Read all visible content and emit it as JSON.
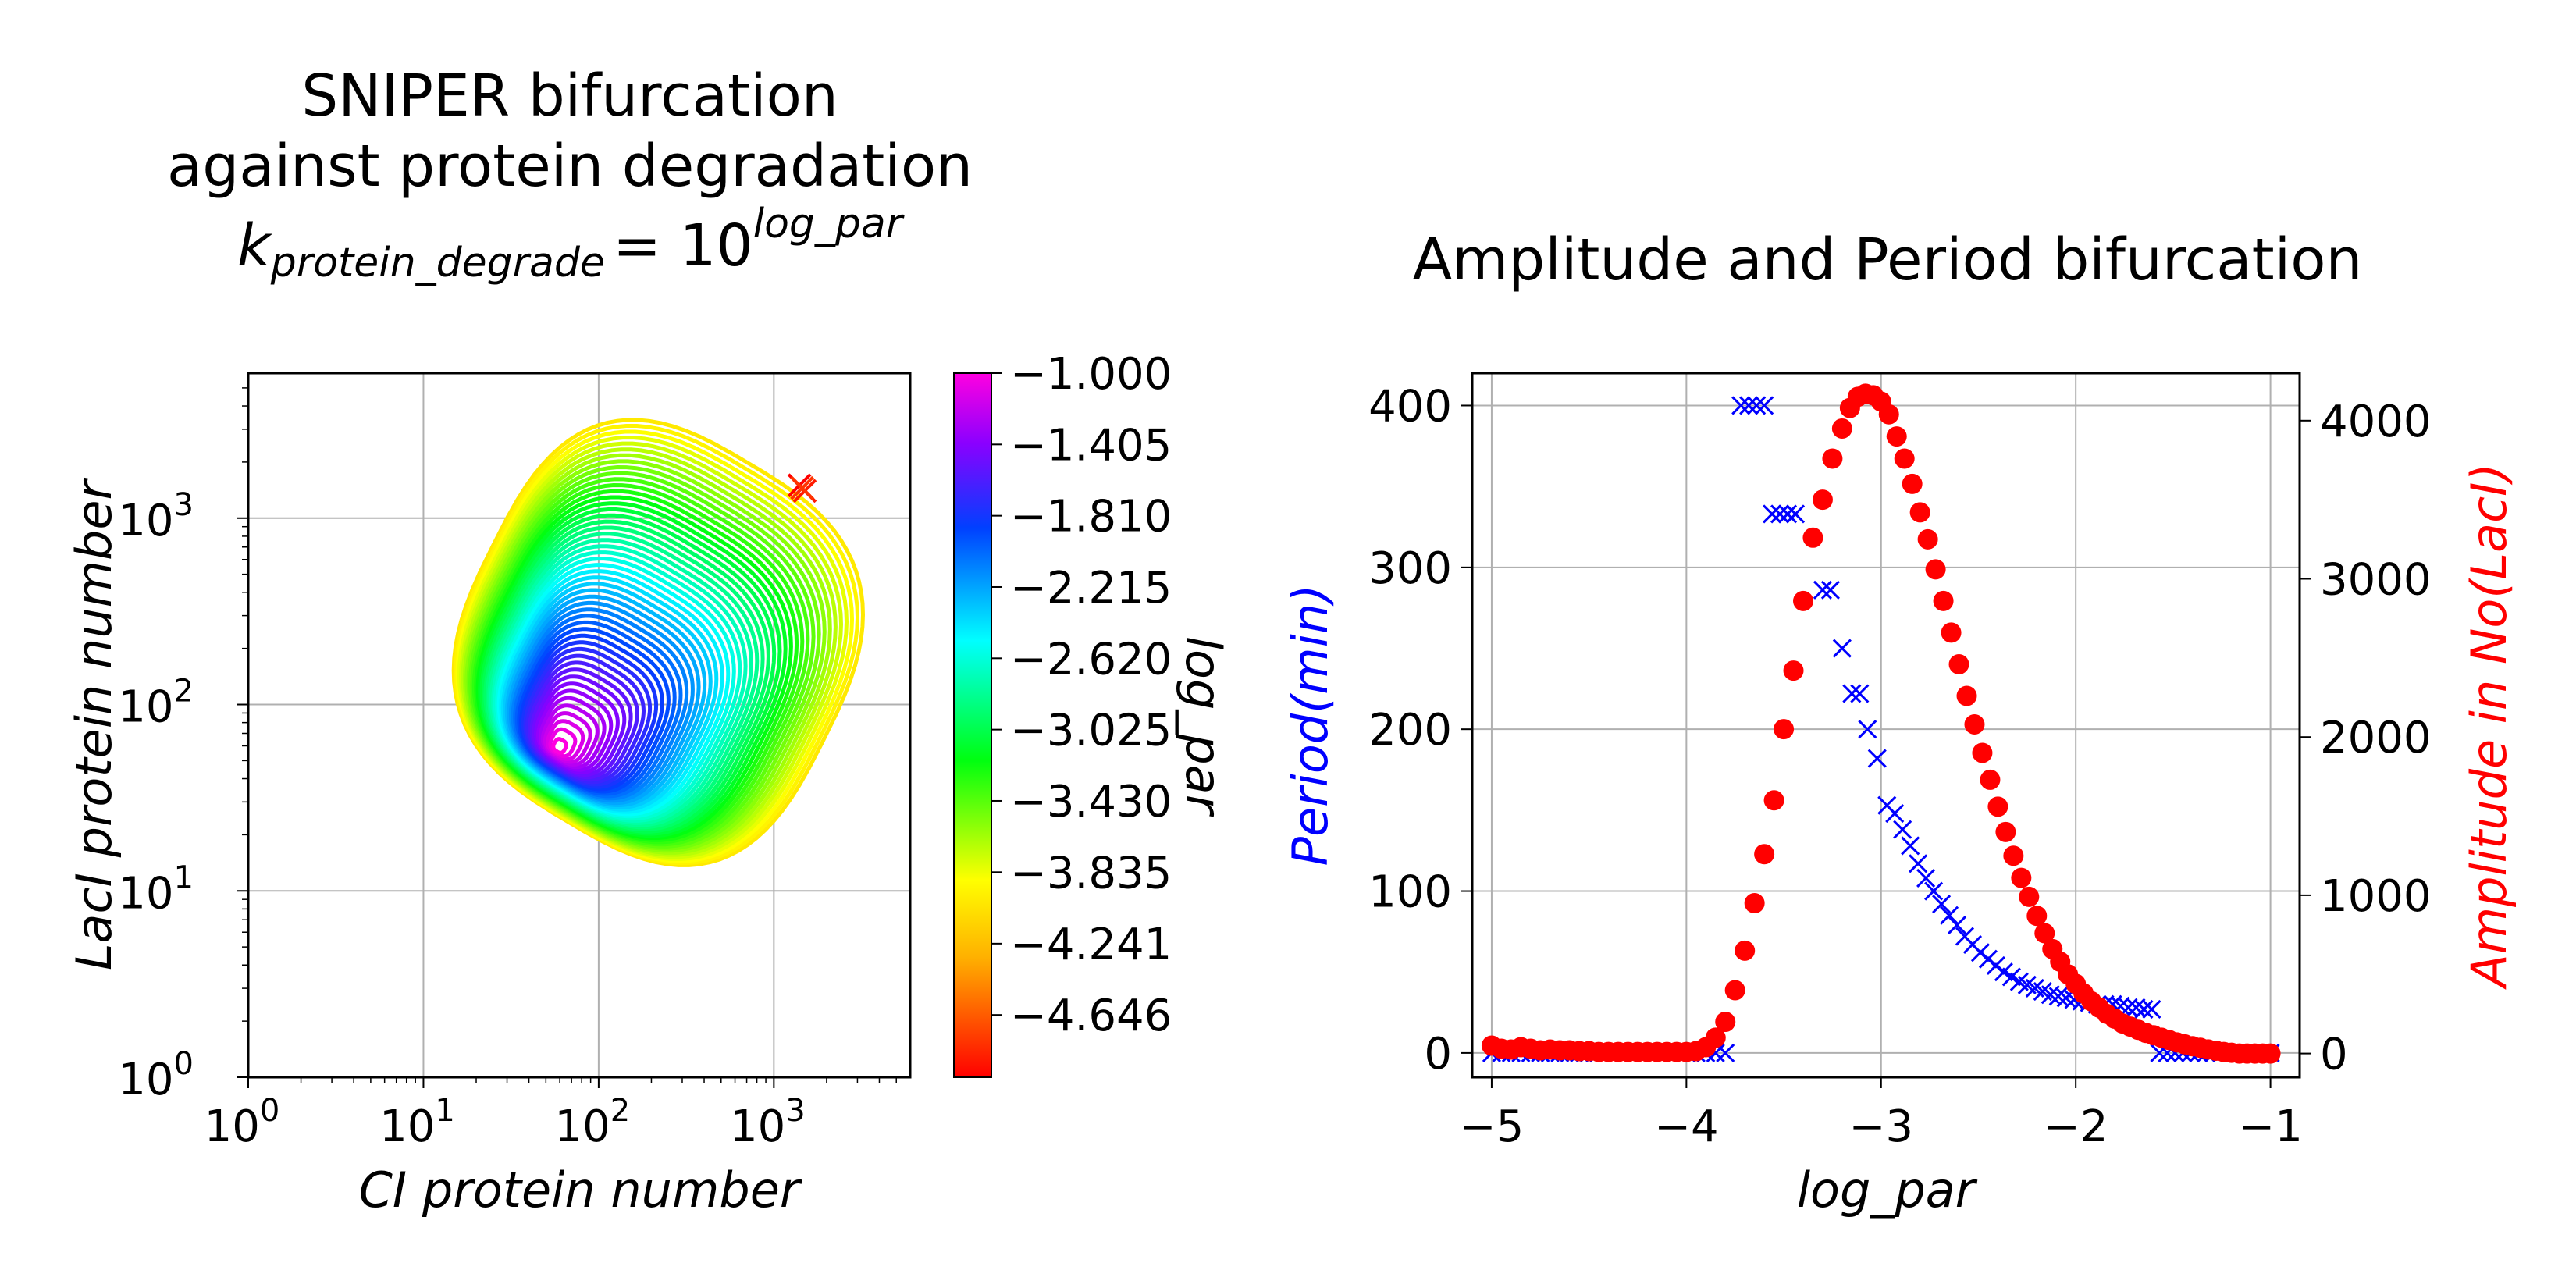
{
  "chart_data": [
    {
      "type": "line",
      "title_lines": [
        "SNIPER bifurcation",
        "against protein degradation"
      ],
      "title_formula": {
        "base": "k",
        "subscript": "protein_degrade",
        "equals": "= 10",
        "exponent": "log_par"
      },
      "xlabel": "CI protein number",
      "ylabel": "LacI protein number",
      "xscale": "log",
      "yscale": "log",
      "xlim": [
        1,
        6000
      ],
      "ylim": [
        1,
        6000
      ],
      "x_ticks": [
        {
          "base": "10",
          "exp": "0"
        },
        {
          "base": "10",
          "exp": "1"
        },
        {
          "base": "10",
          "exp": "2"
        },
        {
          "base": "10",
          "exp": "3"
        }
      ],
      "y_ticks": [
        {
          "base": "10",
          "exp": "0"
        },
        {
          "base": "10",
          "exp": "1"
        },
        {
          "base": "10",
          "exp": "2"
        },
        {
          "base": "10",
          "exp": "3"
        }
      ],
      "grid": true,
      "colormap": "gist_rainbow",
      "colorbar": {
        "label": "log_par",
        "range": [
          -5.0,
          -1.0
        ],
        "ticks": [
          "−1.000",
          "−1.405",
          "−1.810",
          "−2.215",
          "−2.620",
          "−3.025",
          "−3.430",
          "−3.835",
          "−4.241",
          "−4.646"
        ]
      },
      "limit_cycles": {
        "count": 50,
        "log_par_range": [
          -4.0,
          -1.0
        ],
        "largest_cycle_x_range": [
          12,
          4000
        ],
        "largest_cycle_y_range": [
          11,
          4200
        ],
        "innermost_cycle_center": [
          60,
          60
        ]
      },
      "stable_points": [
        {
          "x": 1400,
          "y": 1500,
          "log_par": -5.0
        },
        {
          "x": 1500,
          "y": 1400,
          "log_par": -4.9
        },
        {
          "x": 1450,
          "y": 1450,
          "log_par": -4.8
        }
      ]
    },
    {
      "type": "scatter",
      "title": "Amplitude and Period bifurcation",
      "xlabel": "log_par",
      "ylabel_left": "Period(min)",
      "ylabel_right": "Amplitude in No(LacI)",
      "xlim": [
        -5.1,
        -0.85
      ],
      "ylim_left": [
        -15,
        420
      ],
      "ylim_right": [
        -150,
        4300
      ],
      "x_ticks": [
        "−5",
        "−4",
        "−3",
        "−2",
        "−1"
      ],
      "y_ticks_left": [
        "0",
        "100",
        "200",
        "300",
        "400"
      ],
      "y_ticks_right": [
        "0",
        "1000",
        "2000",
        "3000",
        "4000"
      ],
      "grid": true,
      "colors": {
        "period": "#0000ff",
        "amplitude": "#ff0000"
      },
      "series": [
        {
          "name": "Period(min)",
          "axis": "left",
          "marker": "x",
          "color": "#0000ff",
          "points": [
            [
              -5.0,
              0
            ],
            [
              -4.95,
              0
            ],
            [
              -4.9,
              0
            ],
            [
              -4.85,
              0
            ],
            [
              -4.8,
              0
            ],
            [
              -4.75,
              0
            ],
            [
              -4.7,
              0
            ],
            [
              -4.65,
              0
            ],
            [
              -4.6,
              0
            ],
            [
              -4.55,
              0
            ],
            [
              -4.5,
              0
            ],
            [
              -4.45,
              0
            ],
            [
              -4.4,
              0
            ],
            [
              -4.35,
              0
            ],
            [
              -4.3,
              0
            ],
            [
              -4.25,
              0
            ],
            [
              -4.2,
              0
            ],
            [
              -4.15,
              0
            ],
            [
              -4.1,
              0
            ],
            [
              -4.05,
              0
            ],
            [
              -4.0,
              0
            ],
            [
              -3.95,
              0
            ],
            [
              -3.9,
              0
            ],
            [
              -3.85,
              0
            ],
            [
              -3.8,
              0
            ],
            [
              -3.72,
              400
            ],
            [
              -3.68,
              400
            ],
            [
              -3.64,
              400
            ],
            [
              -3.6,
              400
            ],
            [
              -3.56,
              333
            ],
            [
              -3.52,
              333
            ],
            [
              -3.48,
              333
            ],
            [
              -3.44,
              333
            ],
            [
              -3.3,
              286
            ],
            [
              -3.26,
              286
            ],
            [
              -3.2,
              250
            ],
            [
              -3.15,
              222
            ],
            [
              -3.11,
              222
            ],
            [
              -3.07,
              200
            ],
            [
              -3.02,
              182
            ],
            [
              -2.97,
              153
            ],
            [
              -2.93,
              148
            ],
            [
              -2.89,
              138
            ],
            [
              -2.85,
              128
            ],
            [
              -2.81,
              117
            ],
            [
              -2.77,
              108
            ],
            [
              -2.73,
              100
            ],
            [
              -2.69,
              92
            ],
            [
              -2.65,
              85
            ],
            [
              -2.61,
              79
            ],
            [
              -2.57,
              72
            ],
            [
              -2.53,
              67
            ],
            [
              -2.49,
              62
            ],
            [
              -2.45,
              58
            ],
            [
              -2.41,
              54
            ],
            [
              -2.37,
              50
            ],
            [
              -2.33,
              47
            ],
            [
              -2.29,
              44
            ],
            [
              -2.25,
              42
            ],
            [
              -2.21,
              40
            ],
            [
              -2.17,
              38
            ],
            [
              -2.13,
              36
            ],
            [
              -2.09,
              35
            ],
            [
              -2.05,
              34
            ],
            [
              -2.01,
              33
            ],
            [
              -1.97,
              32
            ],
            [
              -1.93,
              31
            ],
            [
              -1.89,
              30
            ],
            [
              -1.85,
              30
            ],
            [
              -1.81,
              30
            ],
            [
              -1.77,
              29
            ],
            [
              -1.73,
              28
            ],
            [
              -1.69,
              28
            ],
            [
              -1.65,
              27
            ],
            [
              -1.61,
              27
            ],
            [
              -1.57,
              0
            ],
            [
              -1.53,
              0
            ],
            [
              -1.49,
              0
            ],
            [
              -1.45,
              0
            ],
            [
              -1.41,
              0
            ],
            [
              -1.37,
              0
            ],
            [
              -1.33,
              0
            ],
            [
              -1.29,
              0
            ],
            [
              -1.25,
              0
            ],
            [
              -1.21,
              0
            ],
            [
              -1.17,
              0
            ],
            [
              -1.13,
              0
            ],
            [
              -1.09,
              0
            ],
            [
              -1.05,
              0
            ],
            [
              -1.0,
              0
            ]
          ]
        },
        {
          "name": "Amplitude in No(LacI)",
          "axis": "right",
          "marker": "o",
          "color": "#ff0000",
          "points": [
            [
              -5.0,
              50
            ],
            [
              -4.95,
              30
            ],
            [
              -4.9,
              25
            ],
            [
              -4.85,
              40
            ],
            [
              -4.8,
              30
            ],
            [
              -4.75,
              20
            ],
            [
              -4.7,
              25
            ],
            [
              -4.65,
              20
            ],
            [
              -4.6,
              20
            ],
            [
              -4.55,
              15
            ],
            [
              -4.5,
              15
            ],
            [
              -4.45,
              10
            ],
            [
              -4.4,
              10
            ],
            [
              -4.35,
              10
            ],
            [
              -4.3,
              10
            ],
            [
              -4.25,
              10
            ],
            [
              -4.2,
              10
            ],
            [
              -4.15,
              10
            ],
            [
              -4.1,
              10
            ],
            [
              -4.05,
              10
            ],
            [
              -4.0,
              10
            ],
            [
              -3.95,
              15
            ],
            [
              -3.9,
              40
            ],
            [
              -3.85,
              100
            ],
            [
              -3.8,
              200
            ],
            [
              -3.75,
              400
            ],
            [
              -3.7,
              650
            ],
            [
              -3.65,
              950
            ],
            [
              -3.6,
              1260
            ],
            [
              -3.55,
              1600
            ],
            [
              -3.5,
              2050
            ],
            [
              -3.45,
              2420
            ],
            [
              -3.4,
              2860
            ],
            [
              -3.35,
              3260
            ],
            [
              -3.3,
              3500
            ],
            [
              -3.25,
              3760
            ],
            [
              -3.2,
              3950
            ],
            [
              -3.16,
              4080
            ],
            [
              -3.12,
              4150
            ],
            [
              -3.08,
              4170
            ],
            [
              -3.04,
              4160
            ],
            [
              -3.0,
              4120
            ],
            [
              -2.96,
              4040
            ],
            [
              -2.92,
              3900
            ],
            [
              -2.88,
              3760
            ],
            [
              -2.84,
              3600
            ],
            [
              -2.8,
              3420
            ],
            [
              -2.76,
              3250
            ],
            [
              -2.72,
              3060
            ],
            [
              -2.68,
              2860
            ],
            [
              -2.64,
              2660
            ],
            [
              -2.6,
              2460
            ],
            [
              -2.56,
              2260
            ],
            [
              -2.52,
              2080
            ],
            [
              -2.48,
              1900
            ],
            [
              -2.44,
              1730
            ],
            [
              -2.4,
              1560
            ],
            [
              -2.36,
              1400
            ],
            [
              -2.32,
              1250
            ],
            [
              -2.28,
              1110
            ],
            [
              -2.24,
              990
            ],
            [
              -2.2,
              870
            ],
            [
              -2.16,
              760
            ],
            [
              -2.12,
              660
            ],
            [
              -2.08,
              580
            ],
            [
              -2.04,
              500
            ],
            [
              -2.0,
              440
            ],
            [
              -1.96,
              380
            ],
            [
              -1.92,
              330
            ],
            [
              -1.88,
              290
            ],
            [
              -1.84,
              250
            ],
            [
              -1.8,
              220
            ],
            [
              -1.76,
              190
            ],
            [
              -1.72,
              170
            ],
            [
              -1.68,
              150
            ],
            [
              -1.64,
              130
            ],
            [
              -1.6,
              115
            ],
            [
              -1.56,
              100
            ],
            [
              -1.52,
              85
            ],
            [
              -1.48,
              70
            ],
            [
              -1.44,
              58
            ],
            [
              -1.4,
              46
            ],
            [
              -1.36,
              36
            ],
            [
              -1.32,
              26
            ],
            [
              -1.28,
              18
            ],
            [
              -1.24,
              10
            ],
            [
              -1.2,
              5
            ],
            [
              -1.16,
              0
            ],
            [
              -1.12,
              0
            ],
            [
              -1.08,
              0
            ],
            [
              -1.04,
              0
            ],
            [
              -1.0,
              0
            ]
          ]
        }
      ]
    }
  ]
}
